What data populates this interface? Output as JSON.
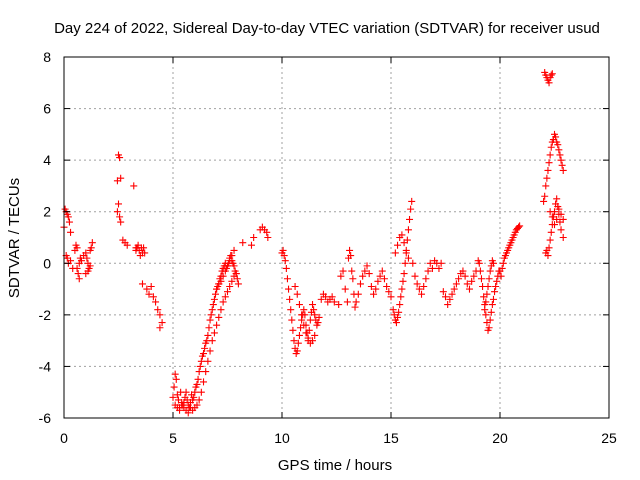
{
  "chart_data": {
    "type": "scatter",
    "title": "Day 224 of 2022, Sidereal Day-to-day VTEC variation (SDTVAR) for receiver usud",
    "xlabel": "GPS time / hours",
    "ylabel": "SDTVAR / TECUs",
    "xlim": [
      0,
      25
    ],
    "ylim": [
      -6,
      8
    ],
    "x_ticks": [
      0,
      5,
      10,
      15,
      20,
      25
    ],
    "y_ticks": [
      -6,
      -4,
      -2,
      0,
      2,
      4,
      6,
      8
    ],
    "grid": true,
    "marker": "plus",
    "color": "#ff0000",
    "series": [
      {
        "name": "SDTVAR",
        "x": [
          0.0,
          0.05,
          0.1,
          0.15,
          0.2,
          0.25,
          0.3,
          0.1,
          0.15,
          0.2,
          0.3,
          0.4,
          0.5,
          0.55,
          0.6,
          0.65,
          0.7,
          0.75,
          0.6,
          0.7,
          0.8,
          0.9,
          1.0,
          1.05,
          1.1,
          1.15,
          1.2,
          1.25,
          1.3,
          1.0,
          1.1,
          1.2,
          2.45,
          2.5,
          2.55,
          2.6,
          2.5,
          2.55,
          2.45,
          2.6,
          2.7,
          2.8,
          2.9,
          3.2,
          3.3,
          3.3,
          3.35,
          3.4,
          3.45,
          3.5,
          3.55,
          3.6,
          3.65,
          3.7,
          3.6,
          3.8,
          3.9,
          4.0,
          4.1,
          4.2,
          4.3,
          4.4,
          4.5,
          4.4,
          5.0,
          5.05,
          5.1,
          5.15,
          5.2,
          5.25,
          5.3,
          5.35,
          5.4,
          5.45,
          5.5,
          5.55,
          5.6,
          5.65,
          5.7,
          5.75,
          5.8,
          5.85,
          5.9,
          5.95,
          6.0,
          6.05,
          6.1,
          6.15,
          6.2,
          6.25,
          6.3,
          6.35,
          6.4,
          6.45,
          6.5,
          6.55,
          6.6,
          6.65,
          6.7,
          6.75,
          6.8,
          6.85,
          6.9,
          6.95,
          7.0,
          7.05,
          7.1,
          7.15,
          7.2,
          7.25,
          7.3,
          7.35,
          7.4,
          7.45,
          7.5,
          7.55,
          7.6,
          7.65,
          7.7,
          7.75,
          7.8,
          7.85,
          7.9,
          7.95,
          8.0,
          5.1,
          5.2,
          5.3,
          5.4,
          5.5,
          5.6,
          5.7,
          5.8,
          5.9,
          6.0,
          6.1,
          6.2,
          6.3,
          6.4,
          6.5,
          6.6,
          6.7,
          6.8,
          6.9,
          7.0,
          7.1,
          7.2,
          7.3,
          7.4,
          7.5,
          7.6,
          7.7,
          7.8,
          7.9,
          7.0,
          7.1,
          7.2,
          7.3,
          7.4,
          7.5,
          7.6,
          7.7,
          7.8,
          8.2,
          8.6,
          8.7,
          9.0,
          9.1,
          9.2,
          9.3,
          9.35,
          10.0,
          10.05,
          10.1,
          10.15,
          10.2,
          10.25,
          10.3,
          10.35,
          10.4,
          10.45,
          10.5,
          10.55,
          10.6,
          10.65,
          10.7,
          10.75,
          10.8,
          10.85,
          10.9,
          10.95,
          11.0,
          11.05,
          11.1,
          11.15,
          11.2,
          11.25,
          11.3,
          11.35,
          11.4,
          11.45,
          11.5,
          11.55,
          11.6,
          11.65,
          11.7,
          11.8,
          11.9,
          12.0,
          12.1,
          12.2,
          12.3,
          12.4,
          10.6,
          10.7,
          10.8,
          10.9,
          11.0,
          11.1,
          11.2,
          11.3,
          11.4,
          11.5,
          12.6,
          12.7,
          12.8,
          12.9,
          13.0,
          13.05,
          13.1,
          13.15,
          13.2,
          13.25,
          13.3,
          13.35,
          13.4,
          13.5,
          13.6,
          13.7,
          13.8,
          13.9,
          14.0,
          14.1,
          14.2,
          14.3,
          14.4,
          14.5,
          14.6,
          14.7,
          14.8,
          14.9,
          15.0,
          15.1,
          15.15,
          15.2,
          15.25,
          15.3,
          15.35,
          15.4,
          15.45,
          15.5,
          15.55,
          15.6,
          15.65,
          15.7,
          15.75,
          15.8,
          15.85,
          15.9,
          15.95,
          16.0,
          16.1,
          16.2,
          16.3,
          16.4,
          16.5,
          16.6,
          16.7,
          16.8,
          16.9,
          17.0,
          17.1,
          17.2,
          17.3,
          15.2,
          15.3,
          15.4,
          15.5,
          15.6,
          15.7,
          15.8,
          17.4,
          17.5,
          17.6,
          17.7,
          17.8,
          17.9,
          18.0,
          18.1,
          18.2,
          18.3,
          18.4,
          18.5,
          18.6,
          18.7,
          18.8,
          18.9,
          19.0,
          19.05,
          19.1,
          19.15,
          19.2,
          19.25,
          19.3,
          19.35,
          19.4,
          19.45,
          19.5,
          19.55,
          19.6,
          19.65,
          19.7,
          19.75,
          19.8,
          19.85,
          19.9,
          19.95,
          19.3,
          19.35,
          19.4,
          19.45,
          19.5,
          19.55,
          19.6,
          19.65,
          19.7,
          20.0,
          20.05,
          20.1,
          20.15,
          20.2,
          20.25,
          20.3,
          20.35,
          20.4,
          20.45,
          20.5,
          20.55,
          20.6,
          20.65,
          20.7,
          20.75,
          20.8,
          20.85,
          20.9,
          22.0,
          22.05,
          22.1,
          22.15,
          22.2,
          22.25,
          22.3,
          22.35,
          22.4,
          22.45,
          22.5,
          22.55,
          22.6,
          22.65,
          22.7,
          22.75,
          22.8,
          22.85,
          22.9,
          22.05,
          22.1,
          22.15,
          22.2,
          22.25,
          22.3,
          22.35,
          22.4,
          22.1,
          22.15,
          22.2,
          22.25,
          22.3,
          22.35,
          22.4,
          22.45,
          22.5,
          22.55,
          22.6,
          22.65,
          22.7,
          22.75,
          22.8,
          22.9,
          22.3,
          22.4,
          22.5,
          22.6,
          22.7,
          22.8,
          22.9
        ],
        "y": [
          1.4,
          2.1,
          2.0,
          1.9,
          1.8,
          1.6,
          1.2,
          0.3,
          0.2,
          0.0,
          0.1,
          -0.2,
          0.5,
          0.7,
          0.6,
          -0.4,
          -0.6,
          0.2,
          -0.2,
          0.0,
          0.1,
          0.3,
          0.4,
          0.2,
          0.0,
          -0.2,
          0.5,
          0.6,
          0.8,
          -0.4,
          -0.3,
          -0.1,
          3.2,
          4.2,
          4.1,
          3.3,
          2.3,
          1.8,
          2.0,
          1.6,
          0.9,
          0.8,
          0.7,
          3.0,
          0.6,
          0.5,
          0.6,
          0.7,
          0.5,
          0.3,
          0.6,
          0.4,
          0.6,
          0.4,
          -0.8,
          -1.0,
          -1.2,
          -0.9,
          -1.3,
          -1.5,
          -1.8,
          -2.0,
          -2.3,
          -2.5,
          -5.2,
          -4.8,
          -4.3,
          -4.5,
          -5.1,
          -5.3,
          -5.6,
          -5.0,
          -5.4,
          -5.5,
          -5.6,
          -5.2,
          -5.0,
          -5.3,
          -5.5,
          -5.6,
          -5.4,
          -5.1,
          -5.3,
          -5.2,
          -5.0,
          -4.8,
          -4.7,
          -4.5,
          -4.2,
          -4.0,
          -3.8,
          -3.6,
          -3.5,
          -3.3,
          -3.1,
          -3.0,
          -2.8,
          -2.5,
          -2.2,
          -2.0,
          -1.8,
          -1.6,
          -1.4,
          -1.2,
          -1.0,
          -0.9,
          -0.8,
          -0.6,
          -0.5,
          -0.3,
          -0.2,
          -0.1,
          0.0,
          -0.2,
          -0.1,
          0.0,
          0.2,
          0.3,
          0.1,
          0.0,
          -0.1,
          -0.3,
          -0.4,
          -0.6,
          -0.8,
          -5.5,
          -5.6,
          -5.7,
          -5.5,
          -5.4,
          -5.7,
          -5.8,
          -5.6,
          -5.7,
          -5.6,
          -5.5,
          -5.3,
          -5.0,
          -4.6,
          -4.2,
          -3.8,
          -3.4,
          -3.0,
          -2.7,
          -2.4,
          -2.1,
          -1.8,
          -1.5,
          -1.3,
          -1.1,
          -0.9,
          -0.7,
          -0.5,
          -0.4,
          -1.0,
          -0.8,
          -0.7,
          -0.5,
          -0.3,
          -0.1,
          0.1,
          0.3,
          0.5,
          0.8,
          0.7,
          1.0,
          1.3,
          1.4,
          1.3,
          1.2,
          1.0,
          0.4,
          0.5,
          0.3,
          0.1,
          -0.2,
          -0.6,
          -1.0,
          -1.4,
          -1.8,
          -2.2,
          -2.6,
          -3.0,
          -3.3,
          -3.5,
          -3.4,
          -3.1,
          -2.8,
          -2.5,
          -2.2,
          -2.0,
          -1.8,
          -2.0,
          -2.4,
          -2.7,
          -3.0,
          -2.6,
          -2.2,
          -1.9,
          -1.6,
          -1.8,
          -2.0,
          -2.2,
          -2.4,
          -2.3,
          -2.1,
          -1.4,
          -1.2,
          -1.3,
          -1.5,
          -1.4,
          -1.3,
          -1.5,
          -0.9,
          -1.2,
          -1.6,
          -2.0,
          -2.4,
          -2.7,
          -2.9,
          -3.1,
          -3.0,
          -2.8,
          -1.6,
          -0.5,
          -0.3,
          -1.0,
          -1.5,
          0.2,
          0.5,
          0.3,
          -0.3,
          -0.6,
          -1.2,
          -1.7,
          -1.5,
          -1.2,
          -0.8,
          -0.5,
          -0.3,
          -0.1,
          -0.4,
          -0.9,
          -1.2,
          -1.0,
          -0.7,
          -0.5,
          -0.3,
          -0.6,
          -0.9,
          -1.1,
          -1.3,
          -1.8,
          -2.0,
          -2.2,
          -2.3,
          -2.1,
          -1.9,
          -1.6,
          -1.3,
          -1.0,
          -0.7,
          -0.4,
          0.0,
          0.4,
          0.9,
          1.3,
          1.7,
          2.1,
          2.4,
          0.0,
          -0.5,
          -0.8,
          -1.0,
          -1.2,
          -0.9,
          -0.6,
          -0.3,
          0.0,
          -0.2,
          0.1,
          0.0,
          -0.2,
          0.0,
          0.4,
          0.7,
          1.0,
          1.1,
          0.8,
          0.5,
          0.2,
          -1.1,
          -1.3,
          -1.6,
          -1.4,
          -1.2,
          -1.0,
          -0.8,
          -0.6,
          -0.4,
          -0.3,
          -0.5,
          -0.8,
          -1.0,
          -0.7,
          -0.5,
          -0.3,
          0.1,
          0.0,
          -0.3,
          -0.6,
          -0.9,
          -1.3,
          -1.6,
          -2.0,
          -2.3,
          -2.6,
          -2.5,
          -2.2,
          -1.9,
          -1.6,
          -1.4,
          -1.1,
          -0.9,
          -0.7,
          -0.5,
          -0.3,
          -1.8,
          -1.5,
          -1.2,
          -0.9,
          -0.6,
          -0.3,
          -0.1,
          0.1,
          0.0,
          -0.3,
          -0.5,
          -0.2,
          0.0,
          0.2,
          0.3,
          0.4,
          0.5,
          0.6,
          0.7,
          0.8,
          0.9,
          1.0,
          1.1,
          1.2,
          1.3,
          1.35,
          1.4,
          1.45,
          2.4,
          2.6,
          3.0,
          3.3,
          3.6,
          3.9,
          4.2,
          4.5,
          4.7,
          4.8,
          5.0,
          4.9,
          4.7,
          4.6,
          4.4,
          4.2,
          4.0,
          3.8,
          3.6,
          7.4,
          7.3,
          7.2,
          7.1,
          7.0,
          7.2,
          7.3,
          7.35,
          0.4,
          0.5,
          0.3,
          0.6,
          0.9,
          1.2,
          1.5,
          1.8,
          2.0,
          2.3,
          2.5,
          2.2,
          1.9,
          1.6,
          1.3,
          1.0,
          2.0,
          1.8,
          1.5,
          1.7,
          2.1,
          1.9,
          1.7
        ]
      }
    ]
  }
}
